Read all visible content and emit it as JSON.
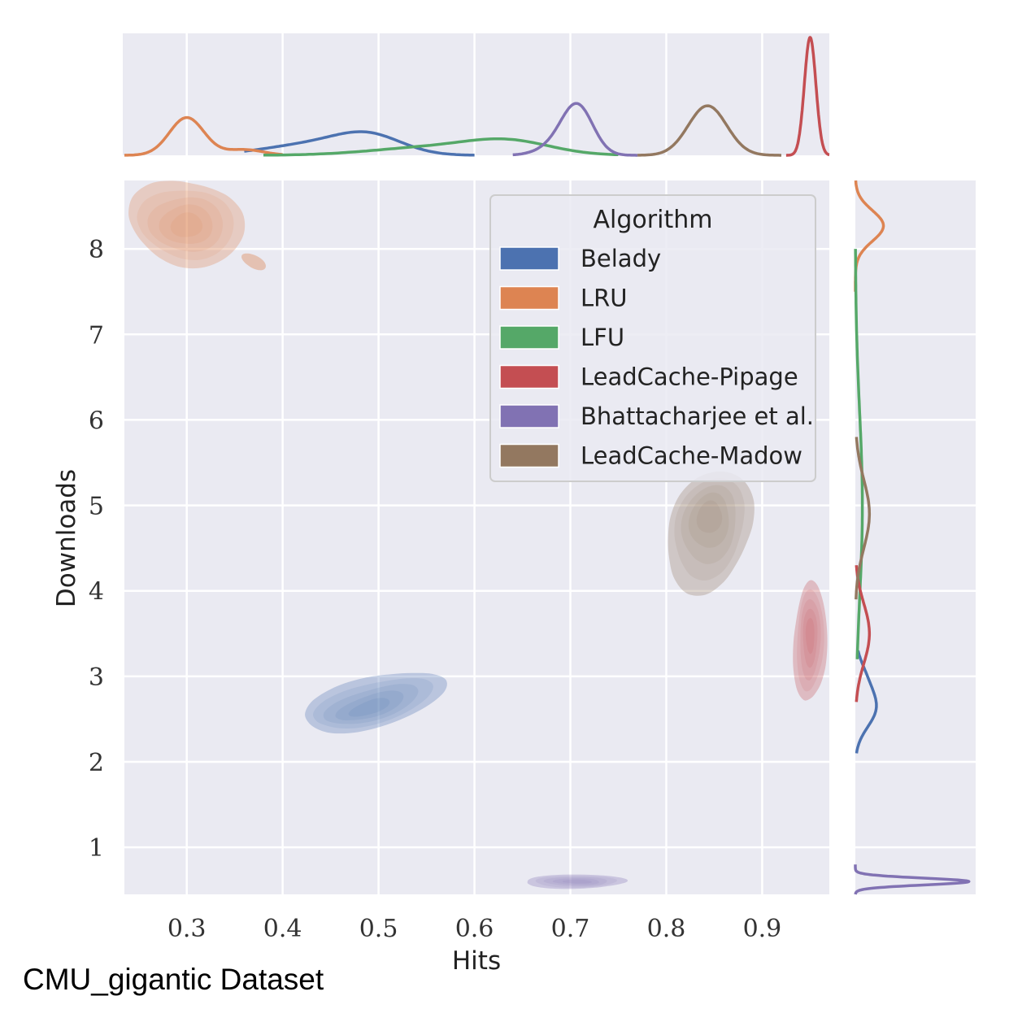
{
  "caption": "CMU_gigantic Dataset",
  "colors": {
    "background": "#eaeaf2",
    "grid": "#ffffff"
  },
  "chart_data": {
    "type": "scatter",
    "subtype": "joint-kde",
    "xlabel": "Hits",
    "ylabel": "Downloads",
    "xlim": [
      0.235,
      0.97
    ],
    "ylim": [
      0.45,
      8.8
    ],
    "xticks": [
      0.3,
      0.4,
      0.5,
      0.6,
      0.7,
      0.8,
      0.9
    ],
    "xtick_labels": [
      "0.3",
      "0.4",
      "0.5",
      "0.6",
      "0.7",
      "0.8",
      "0.9"
    ],
    "yticks": [
      1,
      2,
      3,
      4,
      5,
      6,
      7,
      8
    ],
    "ytick_labels": [
      "1",
      "2",
      "3",
      "4",
      "5",
      "6",
      "7",
      "8"
    ],
    "grid": true,
    "legend": {
      "title": "Algorithm",
      "placement": "upper-right"
    },
    "series": [
      {
        "name": "Belady",
        "color": "#4c72b0",
        "x_center": 0.495,
        "y_center": 2.7,
        "x_range": [
          0.34,
          0.49
        ],
        "y_range": [
          2.4,
          3.0
        ],
        "x_peak": 0.49,
        "y_peak": 2.62
      },
      {
        "name": "LRU",
        "color": "#dd8452",
        "x_center": 0.3,
        "y_center": 8.3,
        "x_range": [
          0.255,
          0.37
        ],
        "y_range": [
          7.6,
          8.65
        ],
        "x_peak": 0.3,
        "y_peak": 8.27
      },
      {
        "name": "LFU",
        "color": "#55a868",
        "x_center": 0.62,
        "y_center": 5.5,
        "x_range": [
          0.38,
          0.75
        ],
        "y_range": [
          3.5,
          8.0
        ],
        "x_peak": 0.635,
        "y_peak": 5.0
      },
      {
        "name": "LeadCache-Pipage",
        "color": "#c44e52",
        "x_center": 0.95,
        "y_center": 3.4,
        "x_range": [
          0.93,
          0.965
        ],
        "y_range": [
          2.7,
          4.1
        ],
        "x_peak": 0.95,
        "y_peak": 3.5
      },
      {
        "name": "Bhattacharjee et al.",
        "color": "#8172b3",
        "x_center": 0.705,
        "y_center": 0.6,
        "x_range": [
          0.65,
          0.76
        ],
        "y_range": [
          0.52,
          0.68
        ],
        "x_peak": 0.708,
        "y_peak": 0.6
      },
      {
        "name": "LeadCache-Madow",
        "color": "#937860",
        "x_center": 0.845,
        "y_center": 4.7,
        "x_range": [
          0.8,
          0.89
        ],
        "y_range": [
          4.0,
          5.4
        ],
        "x_peak": 0.845,
        "y_peak": 4.9
      }
    ]
  }
}
